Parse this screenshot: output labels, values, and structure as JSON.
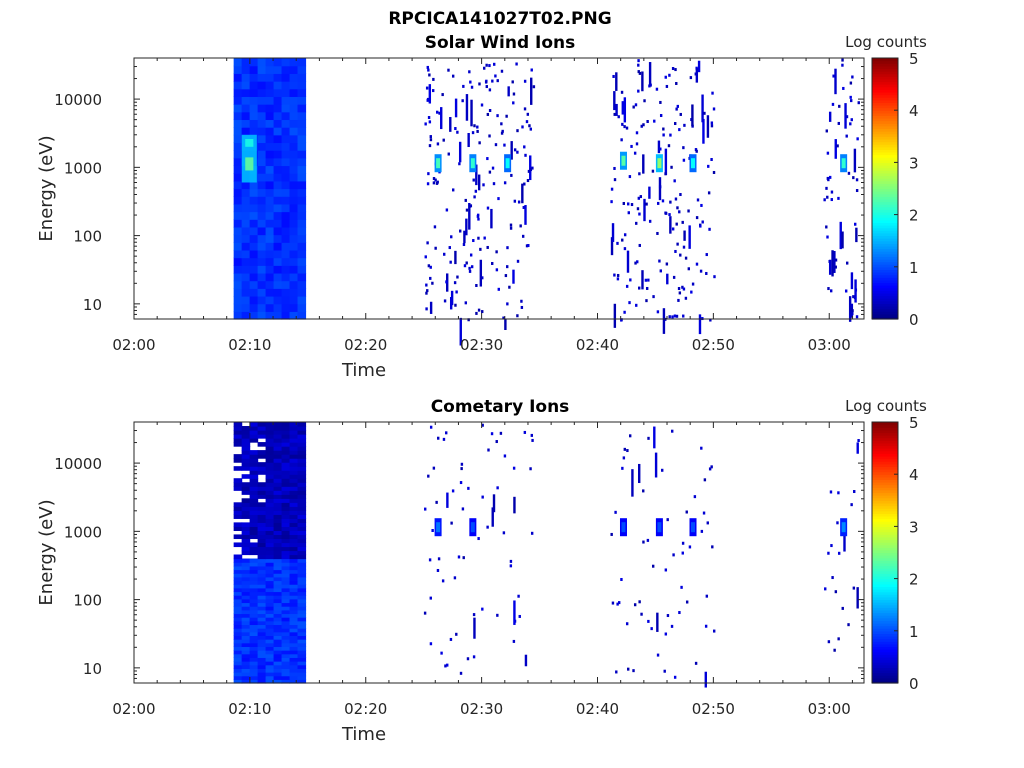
{
  "figure_title": "RPCICA141027T02.PNG",
  "colormap": {
    "name": "jet",
    "stops": [
      "#00007f",
      "#0000ff",
      "#007fff",
      "#00ffff",
      "#7fff7f",
      "#ffff00",
      "#ff7f00",
      "#ff0000",
      "#7f0000"
    ]
  },
  "chart_data": [
    {
      "type": "heatmap",
      "title": "Solar Wind Ions",
      "xlabel": "Time",
      "ylabel": "Energy (eV)",
      "x_ticks": [
        "02:00",
        "02:10",
        "02:20",
        "02:30",
        "02:40",
        "02:50",
        "03:00"
      ],
      "x_tick_minutes": [
        0,
        10,
        20,
        30,
        40,
        50,
        60
      ],
      "xlim_minutes": [
        0,
        63
      ],
      "y_scale": "log",
      "ylim": [
        6,
        40000
      ],
      "y_ticks": [
        "10",
        "100",
        "1000",
        "10000"
      ],
      "y_tick_values": [
        10,
        100,
        1000,
        10000
      ],
      "colorbar": {
        "label": "Log counts",
        "ticks": [
          "0",
          "1",
          "2",
          "3",
          "4",
          "5"
        ],
        "range": [
          0,
          5
        ]
      },
      "blocks": [
        {
          "t0": 8.6,
          "t1": 14.8,
          "e0": 6,
          "e1": 40000,
          "value": 0.85
        },
        {
          "t0": 9.3,
          "t1": 10.6,
          "e0": 600,
          "e1": 3000,
          "value": 1.6
        },
        {
          "t0": 9.6,
          "t1": 10.3,
          "e0": 900,
          "e1": 1400,
          "value": 2.4
        },
        {
          "t0": 9.6,
          "t1": 10.3,
          "e0": 2000,
          "e1": 2600,
          "value": 2.0
        }
      ],
      "peaks": [
        {
          "t": 26.2,
          "e": 1150,
          "value": 2.2
        },
        {
          "t": 29.2,
          "e": 1150,
          "value": 2.1
        },
        {
          "t": 32.2,
          "e": 1150,
          "value": 1.9
        },
        {
          "t": 42.2,
          "e": 1250,
          "value": 2.3
        },
        {
          "t": 45.3,
          "e": 1150,
          "value": 2.6
        },
        {
          "t": 48.2,
          "e": 1150,
          "value": 1.9
        },
        {
          "t": 61.2,
          "e": 1150,
          "value": 2.1
        }
      ],
      "activity_windows": [
        [
          25,
          34.5
        ],
        [
          41,
          50
        ],
        [
          59.5,
          62.5
        ]
      ]
    },
    {
      "type": "heatmap",
      "title": "Cometary Ions",
      "xlabel": "Time",
      "ylabel": "Energy (eV)",
      "x_ticks": [
        "02:00",
        "02:10",
        "02:20",
        "02:30",
        "02:40",
        "02:50",
        "03:00"
      ],
      "x_tick_minutes": [
        0,
        10,
        20,
        30,
        40,
        50,
        60
      ],
      "xlim_minutes": [
        0,
        63
      ],
      "y_scale": "log",
      "ylim": [
        6,
        40000
      ],
      "y_ticks": [
        "10",
        "100",
        "1000",
        "10000"
      ],
      "y_tick_values": [
        10,
        100,
        1000,
        10000
      ],
      "colorbar": {
        "label": "Log counts",
        "ticks": [
          "0",
          "1",
          "2",
          "3",
          "4",
          "5"
        ],
        "range": [
          0,
          5
        ]
      },
      "blocks": [
        {
          "t0": 8.6,
          "t1": 14.8,
          "e0": 6,
          "e1": 400,
          "value": 0.85
        },
        {
          "t0": 8.6,
          "t1": 14.8,
          "e0": 400,
          "e1": 40000,
          "value": 0.3
        }
      ],
      "peaks": [
        {
          "t": 26.2,
          "e": 1150,
          "value": 1.2
        },
        {
          "t": 29.2,
          "e": 1150,
          "value": 1.0
        },
        {
          "t": 42.2,
          "e": 1150,
          "value": 1.0
        },
        {
          "t": 45.3,
          "e": 1150,
          "value": 1.0
        },
        {
          "t": 48.2,
          "e": 1150,
          "value": 1.0
        },
        {
          "t": 61.2,
          "e": 1150,
          "value": 1.3
        }
      ],
      "activity_windows": [
        [
          25,
          34.5
        ],
        [
          41,
          50
        ],
        [
          59.5,
          62.5
        ]
      ]
    }
  ]
}
